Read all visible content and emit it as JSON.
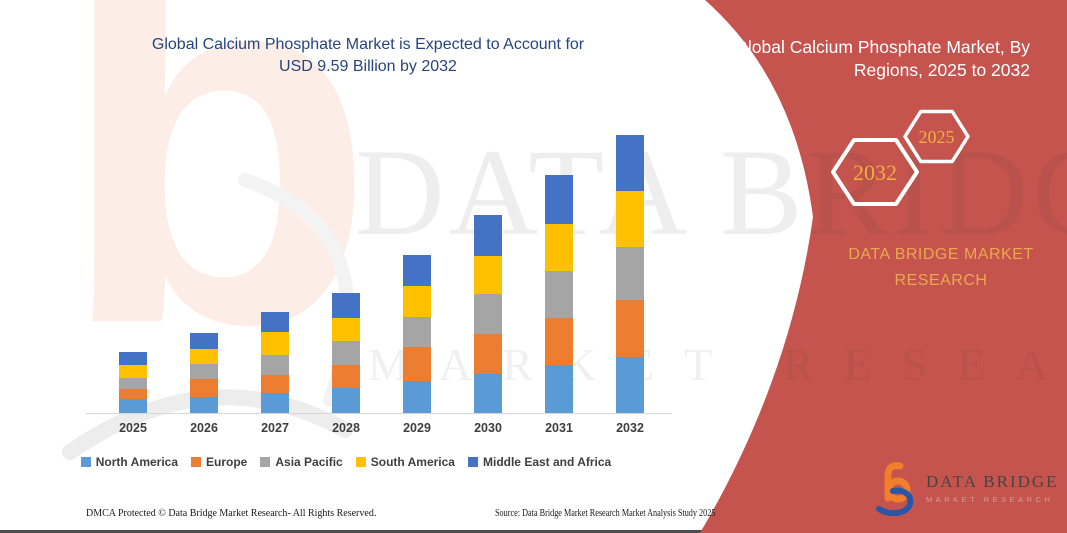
{
  "header": {
    "title_line1": "Global Calcium Phosphate Market is Expected to Account for",
    "title_line2": "USD 9.59 Billion by 2032"
  },
  "side_panel": {
    "title": "Global Calcium Phosphate Market, By Regions, 2025 to 2032",
    "hexagons": [
      {
        "label": "2032"
      },
      {
        "label": "2025"
      }
    ],
    "brand_line1": "DATA BRIDGE MARKET",
    "brand_line2": "RESEARCH",
    "accent_color": "#c5544e",
    "gold_color": "#e8a94b"
  },
  "chart_data": {
    "type": "bar",
    "stacked": true,
    "title": "Global Calcium Phosphate Market is Expected to Account for USD 9.59 Billion by 2032",
    "unit": "USD Billion (segment values estimated from bar heights; 2032 total stated as 9.59)",
    "categories": [
      "2025",
      "2026",
      "2027",
      "2028",
      "2029",
      "2030",
      "2031",
      "2032"
    ],
    "series": [
      {
        "name": "North America",
        "color": "#5B9BD5",
        "values": [
          0.47,
          0.55,
          0.69,
          0.86,
          1.1,
          1.35,
          1.65,
          1.93
        ]
      },
      {
        "name": "Europe",
        "color": "#ED7D31",
        "values": [
          0.37,
          0.63,
          0.63,
          0.8,
          1.18,
          1.37,
          1.62,
          1.96
        ]
      },
      {
        "name": "Asia Pacific",
        "color": "#A5A5A5",
        "values": [
          0.37,
          0.52,
          0.69,
          0.84,
          1.02,
          1.38,
          1.63,
          1.84
        ]
      },
      {
        "name": "South America",
        "color": "#FFC000",
        "values": [
          0.44,
          0.52,
          0.8,
          0.77,
          1.07,
          1.3,
          1.63,
          1.92
        ]
      },
      {
        "name": "Middle East and Africa",
        "color": "#4472C4",
        "values": [
          0.44,
          0.55,
          0.66,
          0.86,
          1.08,
          1.42,
          1.68,
          1.94
        ]
      }
    ],
    "totals": [
      2.09,
      2.77,
      3.47,
      4.13,
      5.45,
      6.82,
      8.21,
      9.59
    ],
    "ylim": [
      0,
      9.8
    ],
    "grid": false,
    "y_axis_visible": false,
    "legend_position": "bottom"
  },
  "watermark": {
    "letter": "b",
    "word1": "DATA BRIDGE",
    "word2": "MARKET RESEARCH"
  },
  "logo": {
    "line1": "DATA BRIDGE",
    "line2": "MARKET RESEARCH"
  },
  "footer": {
    "left": "DMCA Protected © Data Bridge Market Research-  All Rights Reserved.",
    "right": "Source: Data Bridge Market Research  Market Analysis Study 2025"
  }
}
